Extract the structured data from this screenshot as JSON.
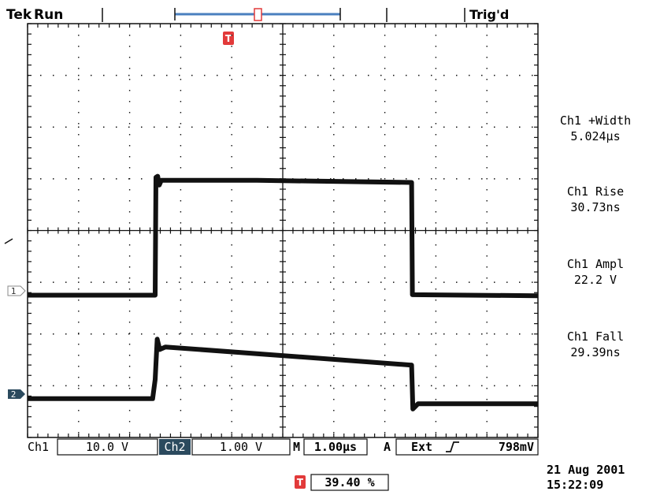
{
  "header": {
    "brand": "Tek",
    "run_state": "Run",
    "trigger_state": "Trig'd",
    "trigger_marker": "T"
  },
  "chart_data": {
    "type": "line",
    "x_unit": "µs",
    "y_unit": "div",
    "xlim": [
      -2.5,
      7.5
    ],
    "ylim": [
      -4,
      4
    ],
    "grid": true,
    "series": [
      {
        "name": "1",
        "points": [
          [
            -2.5,
            -1.25
          ],
          [
            0.0,
            -1.25
          ],
          [
            0.015,
            1.03
          ],
          [
            0.05,
            1.05
          ],
          [
            0.08,
            0.88
          ],
          [
            0.12,
            0.97
          ],
          [
            2.0,
            0.97
          ],
          [
            5.024,
            0.93
          ],
          [
            5.04,
            -1.24
          ],
          [
            7.5,
            -1.26
          ]
        ],
        "color": "#111111"
      },
      {
        "name": "2",
        "points": [
          [
            -2.5,
            -3.25
          ],
          [
            -0.05,
            -3.25
          ],
          [
            0.0,
            -2.88
          ],
          [
            0.04,
            -2.1
          ],
          [
            0.09,
            -2.3
          ],
          [
            0.2,
            -2.25
          ],
          [
            5.0,
            -2.6
          ],
          [
            5.024,
            -2.6
          ],
          [
            5.05,
            -3.45
          ],
          [
            5.15,
            -3.35
          ],
          [
            7.5,
            -3.35
          ]
        ],
        "color": "#111111"
      }
    ]
  },
  "channels": [
    {
      "marker": "1",
      "color": "#ffffff"
    },
    {
      "marker": "2",
      "color": "#2b4a5e"
    }
  ],
  "measurements": [
    {
      "name": "Ch1 +Width",
      "value": "5.024µs"
    },
    {
      "name": "Ch1 Rise",
      "value": "30.73ns"
    },
    {
      "name": "Ch1 Ampl",
      "value": "22.2 V"
    },
    {
      "name": "Ch1 Fall",
      "value": "29.39ns"
    }
  ],
  "status_bar": {
    "ch1_label": "Ch1",
    "ch1_scale": "10.0 V",
    "ch2_label": "Ch2",
    "ch2_scale": "1.00 V",
    "m_label": "M",
    "timebase": "1.00µs",
    "a_label": "A",
    "trig_source": "Ext",
    "trig_slope": "rising-edge-icon",
    "trig_level": "798mV"
  },
  "footer": {
    "trig_position": "39.40 %",
    "date": "21 Aug 2001",
    "time": "15:22:09"
  },
  "colors": {
    "trace": "#111111",
    "trigger_marker": "#e23a3a",
    "record_bar": "#4a7fbf",
    "ch2_tag": "#2b4a5e"
  }
}
